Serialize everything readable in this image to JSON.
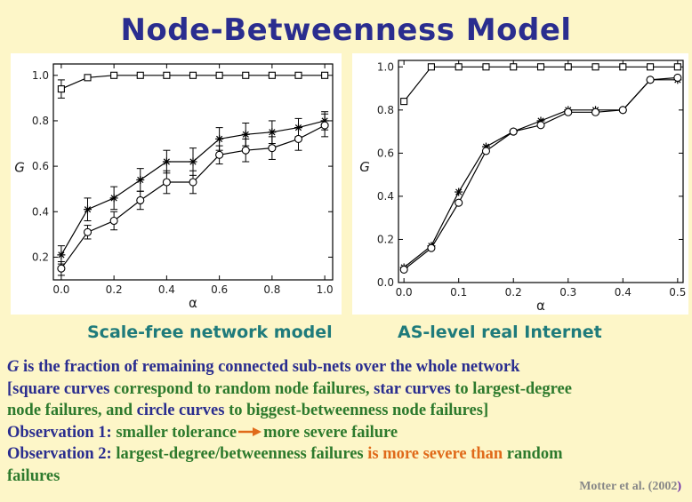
{
  "title": "Node-Betweenness Model",
  "chart_data": [
    {
      "type": "line",
      "xlabel": "α",
      "ylabel": "G",
      "xlim": [
        -0.03,
        1.03
      ],
      "ylim": [
        0.1,
        1.05
      ],
      "xticks": [
        0.0,
        0.2,
        0.4,
        0.6,
        0.8,
        1.0
      ],
      "yticks": [
        0.2,
        0.4,
        0.6,
        0.8,
        1.0
      ],
      "xtick_labels": [
        "0.0",
        "0.2",
        "0.4",
        "0.6",
        "0.8",
        "1.0"
      ],
      "ytick_labels": [
        "0.2",
        "0.4",
        "0.6",
        "0.8",
        "1.0"
      ],
      "caption": "Scale-free network model",
      "series": [
        {
          "marker": "square",
          "x": [
            0.0,
            0.1,
            0.2,
            0.3,
            0.4,
            0.5,
            0.6,
            0.7,
            0.8,
            0.9,
            1.0
          ],
          "y": [
            0.94,
            0.99,
            1.0,
            1.0,
            1.0,
            1.0,
            1.0,
            1.0,
            1.0,
            1.0,
            1.0
          ],
          "err": [
            0.04,
            0.005,
            0,
            0,
            0,
            0,
            0,
            0,
            0,
            0,
            0
          ]
        },
        {
          "marker": "star",
          "x": [
            0.0,
            0.1,
            0.2,
            0.3,
            0.4,
            0.5,
            0.6,
            0.7,
            0.8,
            0.9,
            1.0
          ],
          "y": [
            0.21,
            0.41,
            0.46,
            0.54,
            0.62,
            0.62,
            0.72,
            0.74,
            0.75,
            0.77,
            0.8
          ],
          "err": [
            0.04,
            0.05,
            0.05,
            0.05,
            0.05,
            0.06,
            0.05,
            0.05,
            0.05,
            0.04,
            0.04
          ]
        },
        {
          "marker": "circle",
          "x": [
            0.0,
            0.1,
            0.2,
            0.3,
            0.4,
            0.5,
            0.6,
            0.7,
            0.8,
            0.9,
            1.0
          ],
          "y": [
            0.15,
            0.31,
            0.36,
            0.45,
            0.53,
            0.53,
            0.65,
            0.67,
            0.68,
            0.72,
            0.78
          ],
          "err": [
            0.03,
            0.03,
            0.04,
            0.04,
            0.05,
            0.05,
            0.04,
            0.05,
            0.05,
            0.05,
            0.05
          ]
        }
      ]
    },
    {
      "type": "line",
      "xlabel": "α",
      "ylabel": "G",
      "xlim": [
        -0.01,
        0.51
      ],
      "ylim": [
        0.0,
        1.03
      ],
      "xticks": [
        0.0,
        0.1,
        0.2,
        0.3,
        0.4,
        0.5
      ],
      "yticks": [
        0.0,
        0.2,
        0.4,
        0.6,
        0.8,
        1.0
      ],
      "xtick_labels": [
        "0.0",
        "0.1",
        "0.2",
        "0.3",
        "0.4",
        "0.5"
      ],
      "ytick_labels": [
        "0.0",
        "0.2",
        "0.4",
        "0.6",
        "0.8",
        "1.0"
      ],
      "caption": "AS-level real Internet",
      "series": [
        {
          "marker": "square",
          "x": [
            0.0,
            0.05,
            0.1,
            0.15,
            0.2,
            0.25,
            0.3,
            0.35,
            0.4,
            0.45,
            0.5
          ],
          "y": [
            0.84,
            1.0,
            1.0,
            1.0,
            1.0,
            1.0,
            1.0,
            1.0,
            1.0,
            1.0,
            1.0
          ]
        },
        {
          "marker": "star",
          "x": [
            0.0,
            0.05,
            0.1,
            0.15,
            0.2,
            0.25,
            0.3,
            0.35,
            0.4,
            0.45,
            0.5
          ],
          "y": [
            0.07,
            0.17,
            0.42,
            0.63,
            0.7,
            0.75,
            0.8,
            0.8,
            0.8,
            0.94,
            0.94
          ]
        },
        {
          "marker": "circle",
          "x": [
            0.0,
            0.05,
            0.1,
            0.15,
            0.2,
            0.25,
            0.3,
            0.35,
            0.4,
            0.45,
            0.5
          ],
          "y": [
            0.06,
            0.16,
            0.37,
            0.61,
            0.7,
            0.73,
            0.79,
            0.79,
            0.8,
            0.94,
            0.95
          ]
        }
      ]
    }
  ],
  "captions": {
    "left": "Scale-free network model",
    "right": "AS-level real Internet"
  },
  "text": {
    "line1_g": "G",
    "line1_rest": " is the fraction of remaining connected sub-nets over the whole network",
    "line2_a": "[square curves ",
    "line2_b": "correspond to random node failures, ",
    "line2_c": "star curves ",
    "line2_d": "to largest-degree",
    "line3_a": "node failures, and ",
    "line3_b": "circle curves ",
    "line3_c": "to biggest-betweenness node failures]",
    "line4_a": "Observation 1: ",
    "line4_b": "smaller tolerance",
    "line4_c": "more severe failure",
    "line5_a": "Observation 2: ",
    "line5_b": "largest-degree/betweenness failures ",
    "line5_c": "is more severe than ",
    "line5_d": "random",
    "line6": "failures"
  },
  "credit": {
    "name": "Motter et al. (2002",
    "paren": ")"
  },
  "colors": {
    "title": "#2a2d8f",
    "caption": "#1f7b7b",
    "green": "#2d7a2d",
    "orange": "#e06a1a"
  }
}
